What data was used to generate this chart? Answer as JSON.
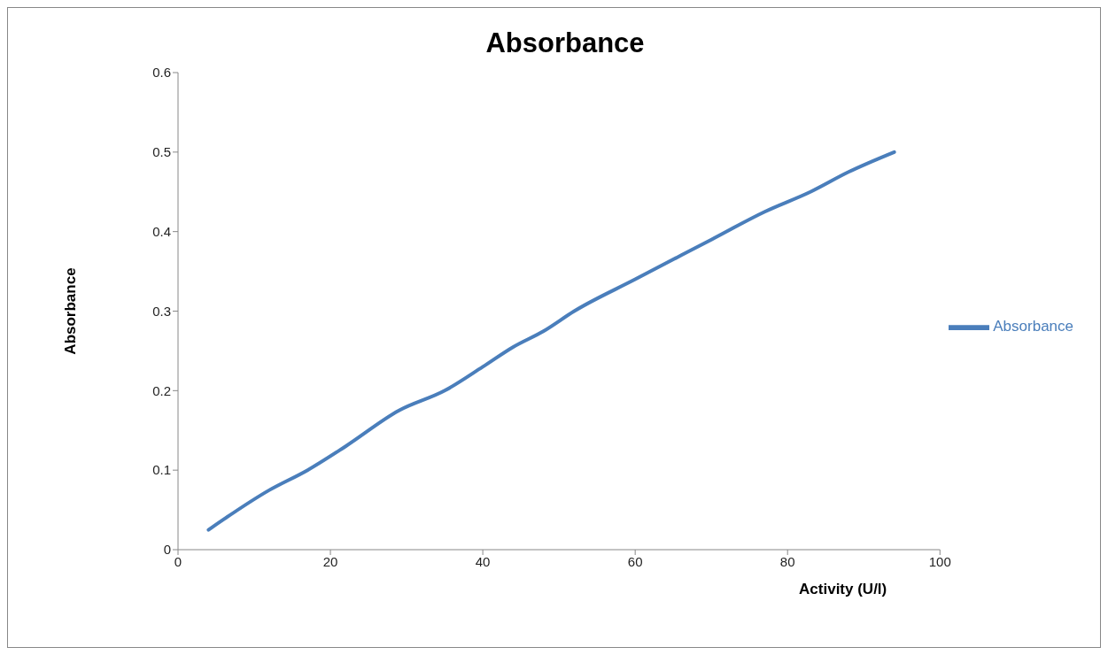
{
  "chart_data": {
    "type": "line",
    "title": "Absorbance",
    "xlabel": "Activity (U/l)",
    "ylabel": "Absorbance",
    "x": [
      4,
      12,
      17,
      22,
      29,
      35,
      40,
      44,
      48,
      52,
      60,
      70,
      77,
      83,
      88,
      94
    ],
    "series": [
      {
        "name": "Absorbance",
        "color": "#4a7ebb",
        "values": [
          0.025,
          0.075,
          0.1,
          0.13,
          0.175,
          0.2,
          0.23,
          0.255,
          0.275,
          0.3,
          0.34,
          0.39,
          0.425,
          0.45,
          0.475,
          0.5
        ]
      }
    ],
    "xlim": [
      0,
      100
    ],
    "xticks": [
      0,
      20,
      40,
      60,
      80,
      100
    ],
    "ylim": [
      0,
      0.6
    ],
    "yticks": [
      0,
      0.1,
      0.2,
      0.3,
      0.4,
      0.5,
      0.6
    ],
    "grid": false,
    "legend": "right",
    "marker": "none",
    "line_style": "solid"
  }
}
